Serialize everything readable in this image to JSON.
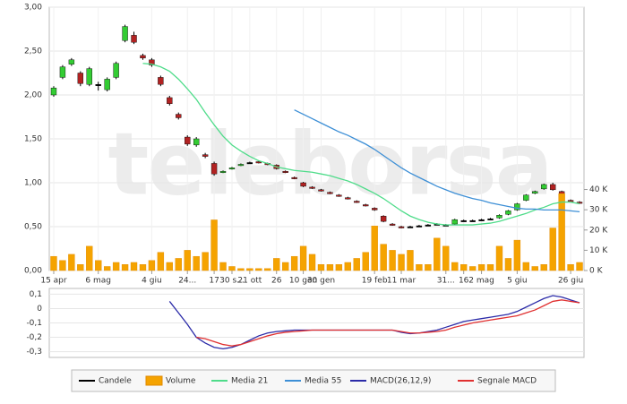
{
  "chart_data": [
    {
      "type": "candlestick",
      "watermark": "teleborsa",
      "xlim": [
        -0.5,
        59.5
      ],
      "xticks": [
        {
          "value": 0,
          "label": "15 apr"
        },
        {
          "value": 5,
          "label": "6 mag"
        },
        {
          "value": 11,
          "label": "4 giu"
        },
        {
          "value": 15,
          "label": "24..."
        },
        {
          "value": 18,
          "label": "17"
        },
        {
          "value": 20,
          "label": "30 s..."
        },
        {
          "value": 22,
          "label": "21 ott"
        },
        {
          "value": 25,
          "label": "26"
        },
        {
          "value": 28,
          "label": "10 gen"
        },
        {
          "value": 30,
          "label": "30 gen"
        },
        {
          "value": 36,
          "label": "19 feb"
        },
        {
          "value": 39,
          "label": "11 mar"
        },
        {
          "value": 44,
          "label": "31..."
        },
        {
          "value": 46,
          "label": "16"
        },
        {
          "value": 48,
          "label": "2 mag"
        },
        {
          "value": 52,
          "label": "5 giu"
        },
        {
          "value": 58,
          "label": "26 giu"
        }
      ],
      "ylim": [
        0,
        3
      ],
      "yticks": [
        {
          "value": 0,
          "label": "0,00"
        },
        {
          "value": 0.5,
          "label": "0,50"
        },
        {
          "value": 1,
          "label": "1,00"
        },
        {
          "value": 1.5,
          "label": "1,50"
        },
        {
          "value": 2,
          "label": "2,00"
        },
        {
          "value": 2.5,
          "label": "2,50"
        },
        {
          "value": 3,
          "label": "3,00"
        }
      ],
      "y2lim": [
        0,
        130000
      ],
      "y2ticks": [
        {
          "value": 0,
          "label": "0 K"
        },
        {
          "value": 10000,
          "label": "10 K"
        },
        {
          "value": 20000,
          "label": "20 K"
        },
        {
          "value": 30000,
          "label": "30 K"
        },
        {
          "value": 40000,
          "label": "40 K"
        }
      ],
      "grid": true,
      "series": [
        {
          "name": "Candele",
          "color": "#000000",
          "up_color": "#33cc33",
          "down_color": "#b22222",
          "open": [
            2.0,
            2.2,
            2.35,
            2.25,
            2.12,
            2.12,
            2.06,
            2.2,
            2.62,
            2.68,
            2.45,
            2.4,
            2.2,
            1.97,
            1.78,
            1.52,
            1.43,
            1.32,
            1.22,
            1.12,
            1.16,
            1.2,
            1.23,
            1.24,
            1.22,
            1.2,
            1.13,
            1.06,
            1.0,
            0.95,
            0.92,
            0.89,
            0.86,
            0.83,
            0.79,
            0.75,
            0.71,
            0.62,
            0.53,
            0.5,
            0.5,
            0.51,
            0.52,
            0.53,
            0.52,
            0.53,
            0.57,
            0.57,
            0.58,
            0.59,
            0.6,
            0.64,
            0.69,
            0.8,
            0.88,
            0.93,
            0.98,
            0.9,
            0.8,
            0.78
          ],
          "high": [
            2.1,
            2.34,
            2.42,
            2.27,
            2.32,
            2.15,
            2.2,
            2.38,
            2.8,
            2.72,
            2.47,
            2.42,
            2.22,
            1.99,
            1.8,
            1.54,
            1.52,
            1.34,
            1.24,
            1.14,
            1.18,
            1.22,
            1.24,
            1.25,
            1.23,
            1.21,
            1.14,
            1.07,
            1.01,
            0.96,
            0.93,
            0.9,
            0.87,
            0.84,
            0.8,
            0.76,
            0.72,
            0.63,
            0.54,
            0.51,
            0.51,
            0.52,
            0.53,
            0.54,
            0.53,
            0.59,
            0.58,
            0.58,
            0.59,
            0.6,
            0.64,
            0.69,
            0.77,
            0.87,
            0.91,
            0.99,
            1.0,
            0.91,
            0.81,
            0.79
          ],
          "low": [
            1.98,
            2.18,
            2.33,
            2.1,
            2.1,
            2.05,
            2.04,
            2.18,
            2.6,
            2.58,
            2.4,
            2.32,
            2.1,
            1.88,
            1.72,
            1.42,
            1.41,
            1.28,
            1.08,
            1.11,
            1.15,
            1.19,
            1.22,
            1.22,
            1.2,
            1.15,
            1.11,
            1.04,
            0.95,
            0.93,
            0.9,
            0.87,
            0.84,
            0.81,
            0.77,
            0.73,
            0.68,
            0.55,
            0.51,
            0.48,
            0.49,
            0.5,
            0.51,
            0.52,
            0.51,
            0.52,
            0.56,
            0.56,
            0.57,
            0.58,
            0.59,
            0.63,
            0.68,
            0.79,
            0.87,
            0.92,
            0.91,
            0.79,
            0.78,
            0.76
          ],
          "close": [
            2.08,
            2.32,
            2.4,
            2.13,
            2.3,
            2.12,
            2.18,
            2.36,
            2.78,
            2.6,
            2.42,
            2.34,
            2.12,
            1.9,
            1.74,
            1.44,
            1.5,
            1.3,
            1.1,
            1.13,
            1.17,
            1.21,
            1.23,
            1.23,
            1.21,
            1.16,
            1.12,
            1.05,
            0.96,
            0.94,
            0.91,
            0.88,
            0.85,
            0.82,
            0.78,
            0.74,
            0.69,
            0.56,
            0.52,
            0.49,
            0.5,
            0.51,
            0.52,
            0.53,
            0.52,
            0.58,
            0.57,
            0.57,
            0.58,
            0.59,
            0.63,
            0.68,
            0.76,
            0.86,
            0.9,
            0.98,
            0.92,
            0.8,
            0.79,
            0.77
          ]
        },
        {
          "name": "Volume",
          "color": "#f5a300",
          "axis": "y2",
          "values": [
            7000,
            5000,
            8000,
            3000,
            12000,
            5000,
            2000,
            4000,
            3000,
            4000,
            3000,
            5000,
            9000,
            4000,
            6000,
            10000,
            7000,
            9000,
            25000,
            4000,
            2000,
            1000,
            1000,
            1000,
            1000,
            6000,
            4000,
            7000,
            12000,
            8000,
            3000,
            3000,
            3000,
            4000,
            6000,
            9000,
            22000,
            13000,
            10000,
            8000,
            10000,
            3000,
            3000,
            16000,
            12000,
            4000,
            3000,
            2000,
            3000,
            3000,
            12000,
            6000,
            15000,
            4000,
            2000,
            3000,
            21000,
            38000,
            3000,
            4000
          ]
        },
        {
          "name": "Media 21",
          "color": "#4fdc8a",
          "values": [
            null,
            null,
            null,
            null,
            null,
            null,
            null,
            null,
            null,
            null,
            2.36,
            2.35,
            2.32,
            2.27,
            2.18,
            2.07,
            1.95,
            1.8,
            1.66,
            1.53,
            1.43,
            1.36,
            1.3,
            1.25,
            1.22,
            1.18,
            1.16,
            1.14,
            1.13,
            1.12,
            1.1,
            1.08,
            1.05,
            1.02,
            0.98,
            0.93,
            0.88,
            0.82,
            0.75,
            0.68,
            0.62,
            0.58,
            0.55,
            0.53,
            0.52,
            0.52,
            0.52,
            0.52,
            0.53,
            0.54,
            0.56,
            0.59,
            0.62,
            0.65,
            0.69,
            0.72,
            0.76,
            0.78,
            0.78,
            0.76
          ]
        },
        {
          "name": "Media 55",
          "color": "#3d8fd6",
          "values": [
            null,
            null,
            null,
            null,
            null,
            null,
            null,
            null,
            null,
            null,
            null,
            null,
            null,
            null,
            null,
            null,
            null,
            null,
            null,
            null,
            null,
            null,
            null,
            null,
            null,
            null,
            null,
            1.83,
            1.78,
            1.73,
            1.68,
            1.63,
            1.58,
            1.54,
            1.49,
            1.44,
            1.38,
            1.31,
            1.24,
            1.17,
            1.11,
            1.06,
            1.01,
            0.96,
            0.92,
            0.88,
            0.85,
            0.82,
            0.8,
            0.77,
            0.75,
            0.73,
            0.71,
            0.7,
            0.7,
            0.69,
            0.69,
            0.69,
            0.68,
            0.67
          ]
        }
      ]
    },
    {
      "type": "line",
      "xlim": [
        -0.5,
        59.5
      ],
      "ylim": [
        -0.34,
        0.14
      ],
      "yticks": [
        {
          "value": -0.3,
          "label": "-0,3"
        },
        {
          "value": -0.2,
          "label": "-0,2"
        },
        {
          "value": -0.1,
          "label": "-0,1"
        },
        0,
        {
          "value": 0.1,
          "label": "0,1"
        }
      ],
      "grid": true,
      "series": [
        {
          "name": "MACD(26,12,9)",
          "color": "#2b2ba8",
          "values": [
            null,
            null,
            null,
            null,
            null,
            null,
            null,
            null,
            null,
            null,
            null,
            null,
            null,
            0.05,
            -0.03,
            -0.11,
            -0.2,
            -0.24,
            -0.27,
            -0.28,
            -0.27,
            -0.25,
            -0.22,
            -0.19,
            -0.17,
            -0.16,
            -0.155,
            -0.15,
            -0.15,
            -0.15,
            -0.15,
            -0.15,
            -0.15,
            -0.15,
            -0.15,
            -0.15,
            -0.15,
            -0.15,
            -0.15,
            -0.165,
            -0.175,
            -0.17,
            -0.16,
            -0.15,
            -0.13,
            -0.11,
            -0.09,
            -0.08,
            -0.07,
            -0.06,
            -0.05,
            -0.04,
            -0.02,
            0.01,
            0.04,
            0.07,
            0.09,
            0.08,
            0.06,
            0.04
          ]
        },
        {
          "name": "Segnale MACD",
          "color": "#e03030",
          "values": [
            null,
            null,
            null,
            null,
            null,
            null,
            null,
            null,
            null,
            null,
            null,
            null,
            null,
            null,
            null,
            null,
            -0.2,
            -0.21,
            -0.23,
            -0.25,
            -0.26,
            -0.25,
            -0.23,
            -0.21,
            -0.19,
            -0.175,
            -0.165,
            -0.16,
            -0.155,
            -0.15,
            -0.15,
            -0.15,
            -0.15,
            -0.15,
            -0.15,
            -0.15,
            -0.15,
            -0.15,
            -0.15,
            -0.16,
            -0.17,
            -0.17,
            -0.165,
            -0.16,
            -0.15,
            -0.13,
            -0.115,
            -0.1,
            -0.09,
            -0.08,
            -0.07,
            -0.06,
            -0.05,
            -0.03,
            -0.01,
            0.02,
            0.05,
            0.06,
            0.05,
            0.04
          ]
        }
      ]
    }
  ]
}
